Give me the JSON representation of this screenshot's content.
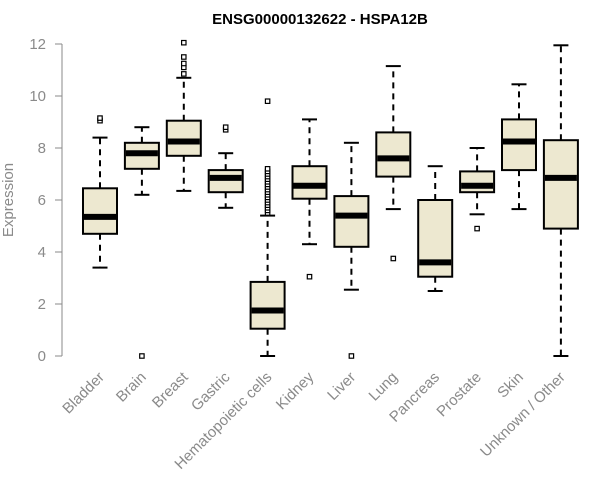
{
  "chart_data": {
    "type": "boxplot",
    "title": "ENSG00000132622 - HSPA12B",
    "xlabel": "",
    "ylabel": "Expression",
    "ylim": [
      0,
      12
    ],
    "yticks": [
      0,
      2,
      4,
      6,
      8,
      10,
      12
    ],
    "grid": false,
    "box_fill": "#ede8d0",
    "axis_color": "#8a8a8a",
    "categories": [
      "Bladder",
      "Brain",
      "Breast",
      "Gastric",
      "Hematopoietic cells",
      "Kidney",
      "Liver",
      "Lung",
      "Pancreas",
      "Prostate",
      "Skin",
      "Unknown / Other"
    ],
    "boxes": [
      {
        "category": "Bladder",
        "whisker_low": 3.4,
        "q1": 4.7,
        "median": 5.35,
        "q3": 6.45,
        "whisker_high": 8.4,
        "outliers": [
          9.05,
          9.15
        ]
      },
      {
        "category": "Brain",
        "whisker_low": 6.2,
        "q1": 7.2,
        "median": 7.8,
        "q3": 8.2,
        "whisker_high": 8.8,
        "outliers": [
          0.0
        ]
      },
      {
        "category": "Breast",
        "whisker_low": 6.35,
        "q1": 7.7,
        "median": 8.25,
        "q3": 9.05,
        "whisker_high": 10.7,
        "outliers": [
          10.85,
          11.1,
          11.25,
          11.5,
          12.05
        ]
      },
      {
        "category": "Gastric",
        "whisker_low": 5.7,
        "q1": 6.3,
        "median": 6.85,
        "q3": 7.15,
        "whisker_high": 7.8,
        "outliers": [
          8.7,
          8.8
        ]
      },
      {
        "category": "Hematopoietic cells",
        "whisker_low": 0.0,
        "q1": 1.05,
        "median": 1.75,
        "q3": 2.85,
        "whisker_high": 5.4,
        "outliers": [
          5.5,
          5.6,
          5.7,
          5.8,
          5.9,
          6.0,
          6.1,
          6.2,
          6.3,
          6.4,
          6.5,
          6.6,
          6.7,
          6.8,
          6.9,
          7.0,
          7.1,
          7.2,
          9.8
        ]
      },
      {
        "category": "Kidney",
        "whisker_low": 4.3,
        "q1": 6.05,
        "median": 6.55,
        "q3": 7.3,
        "whisker_high": 9.1,
        "outliers": [
          3.05
        ]
      },
      {
        "category": "Liver",
        "whisker_low": 2.55,
        "q1": 4.2,
        "median": 5.4,
        "q3": 6.15,
        "whisker_high": 8.2,
        "outliers": [
          0.0
        ]
      },
      {
        "category": "Lung",
        "whisker_low": 5.65,
        "q1": 6.9,
        "median": 7.6,
        "q3": 8.6,
        "whisker_high": 11.15,
        "outliers": [
          3.75
        ]
      },
      {
        "category": "Pancreas",
        "whisker_low": 2.5,
        "q1": 3.05,
        "median": 3.6,
        "q3": 6.0,
        "whisker_high": 7.3,
        "outliers": []
      },
      {
        "category": "Prostate",
        "whisker_low": 5.45,
        "q1": 6.3,
        "median": 6.55,
        "q3": 7.1,
        "whisker_high": 8.0,
        "outliers": [
          4.9
        ]
      },
      {
        "category": "Skin",
        "whisker_low": 5.65,
        "q1": 7.15,
        "median": 8.25,
        "q3": 9.1,
        "whisker_high": 10.45,
        "outliers": []
      },
      {
        "category": "Unknown / Other",
        "whisker_low": 0.0,
        "q1": 4.9,
        "median": 6.85,
        "q3": 8.3,
        "whisker_high": 11.95,
        "outliers": []
      }
    ]
  }
}
